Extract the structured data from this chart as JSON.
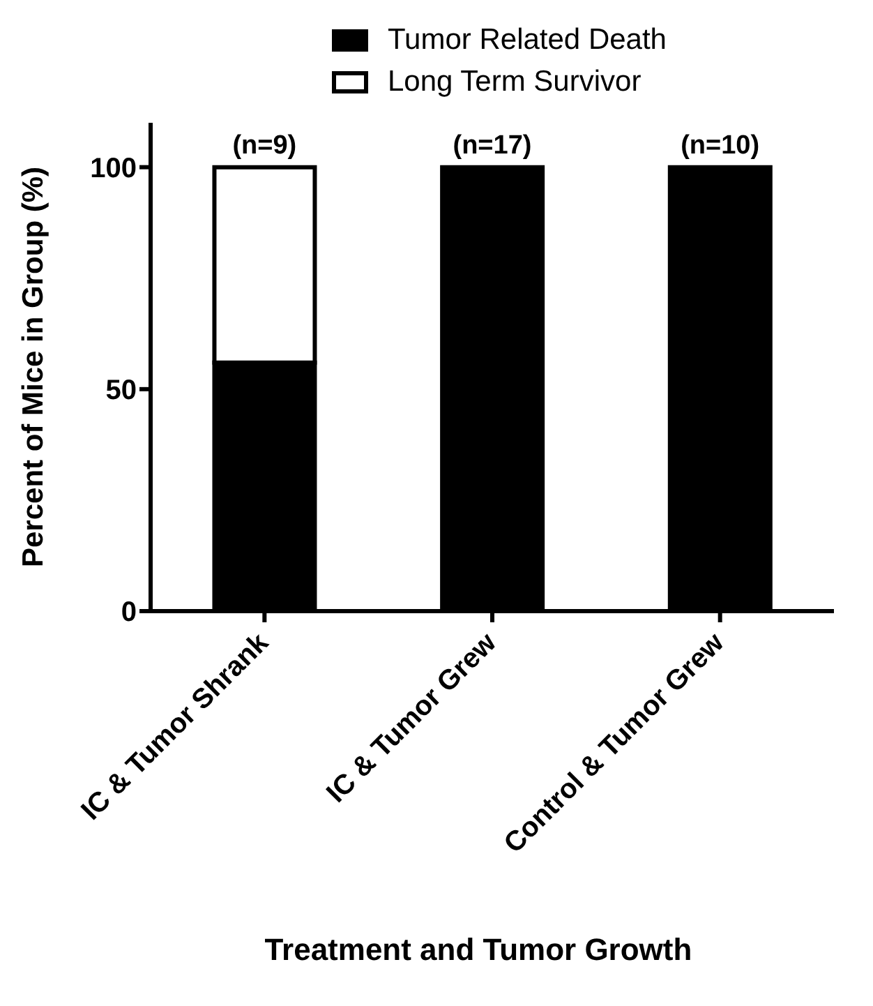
{
  "chart_data": {
    "type": "bar",
    "stacked": true,
    "xlabel": "Treatment and Tumor Growth",
    "ylabel": "Percent of Mice in Group (%)",
    "categories": [
      "IC & Tumor Shrank",
      "IC & Tumor Grew",
      "Control & Tumor Grew"
    ],
    "series": [
      {
        "name": "Tumor Related Death",
        "color": "#000000",
        "values": [
          56,
          100,
          100
        ]
      },
      {
        "name": "Long Term Survivor",
        "color": "#ffffff",
        "values": [
          44,
          0,
          0
        ]
      }
    ],
    "ylim": [
      0,
      110
    ],
    "yticks": [
      0,
      50,
      100
    ],
    "grid": false,
    "legend": "top",
    "annotations": [
      {
        "text": "(n=9)",
        "x": "IC & Tumor Shrank",
        "y": 100
      },
      {
        "text": "(n=17)",
        "x": "IC & Tumor Grew",
        "y": 100
      },
      {
        "text": "(n=10)",
        "x": "Control & Tumor Grew",
        "y": 100
      }
    ]
  }
}
